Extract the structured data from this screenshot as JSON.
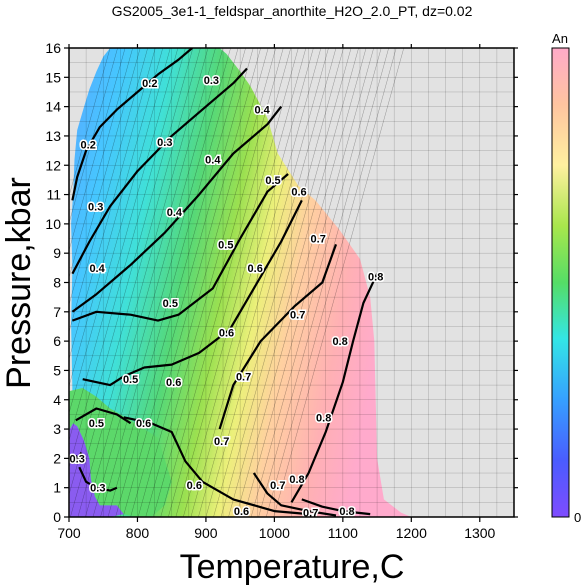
{
  "chart_data": {
    "type": "heatmap",
    "title": "GS2005_3e1-1_feldspar_anorthite_H2O_2.0_PT, dz=0.02",
    "xlabel": "Temperature,C",
    "ylabel": "Pressure,kbar",
    "xlim": [
      700,
      1350
    ],
    "ylim": [
      0,
      16
    ],
    "xticks": [
      "700",
      "800",
      "900",
      "1000",
      "1100",
      "1200",
      "1300"
    ],
    "yticks": [
      "0",
      "1",
      "2",
      "3",
      "4",
      "5",
      "6",
      "7",
      "8",
      "9",
      "10",
      "11",
      "12",
      "13",
      "14",
      "15",
      "16"
    ],
    "grid": true,
    "colorbar": {
      "label": "An",
      "min_label": "0",
      "position": "right"
    },
    "colors": {
      "no_data": "#e2e2e2",
      "low": "#8a5cf0",
      "high": "#ffb0c0"
    },
    "contour_interval": 0.02,
    "contours": [
      {
        "level": 0.2,
        "label": "0.2",
        "points": [
          [
            705,
            10.8
          ],
          [
            712,
            11.6
          ],
          [
            725,
            12.5
          ],
          [
            745,
            13.3
          ],
          [
            770,
            13.9
          ],
          [
            800,
            14.5
          ],
          [
            830,
            15.1
          ],
          [
            860,
            15.6
          ],
          [
            880,
            16.0
          ]
        ],
        "labels": [
          [
            728,
            12.7
          ],
          [
            818,
            14.8
          ]
        ]
      },
      {
        "level": 0.3,
        "label": "0.3",
        "points": [
          [
            705,
            8.3
          ],
          [
            730,
            9.4
          ],
          [
            760,
            10.6
          ],
          [
            800,
            11.8
          ],
          [
            850,
            13.0
          ],
          [
            900,
            14.0
          ],
          [
            940,
            14.8
          ],
          [
            960,
            15.3
          ]
        ],
        "labels": [
          [
            739,
            10.6
          ],
          [
            840,
            12.8
          ],
          [
            908,
            14.9
          ]
        ]
      },
      {
        "level": 0.4,
        "label": "0.4",
        "points": [
          [
            705,
            7.0
          ],
          [
            740,
            7.6
          ],
          [
            790,
            8.6
          ],
          [
            840,
            9.7
          ],
          [
            890,
            11.0
          ],
          [
            940,
            12.4
          ],
          [
            990,
            13.4
          ],
          [
            1010,
            14.0
          ]
        ],
        "labels": [
          [
            741,
            8.5
          ],
          [
            854,
            10.4
          ],
          [
            910,
            12.2
          ],
          [
            982,
            13.9
          ]
        ]
      },
      {
        "level": 0.5,
        "label": "0.5",
        "points": [
          [
            705,
            6.7
          ],
          [
            740,
            7.0
          ],
          [
            790,
            6.9
          ],
          [
            830,
            6.7
          ],
          [
            860,
            6.9
          ],
          [
            910,
            7.8
          ],
          [
            950,
            9.5
          ],
          [
            990,
            11.1
          ],
          [
            1020,
            11.7
          ]
        ],
        "labels": [
          [
            790,
            4.7
          ],
          [
            848,
            7.3
          ],
          [
            929,
            9.3
          ],
          [
            998,
            11.5
          ]
        ]
      },
      {
        "level": 0.6,
        "label": "0.6",
        "points": [
          [
            720,
            4.7
          ],
          [
            760,
            4.5
          ],
          [
            780,
            4.8
          ],
          [
            810,
            5.1
          ],
          [
            850,
            5.2
          ],
          [
            890,
            5.6
          ],
          [
            935,
            6.4
          ],
          [
            975,
            8.0
          ],
          [
            1010,
            9.4
          ],
          [
            1040,
            10.8
          ]
        ],
        "labels": [
          [
            853,
            4.6
          ],
          [
            930,
            6.3
          ],
          [
            972,
            8.5
          ],
          [
            1036,
            11.1
          ]
        ]
      },
      {
        "level": 0.7,
        "label": "0.7",
        "points": [
          [
            920,
            3.0
          ],
          [
            940,
            4.5
          ],
          [
            980,
            6.0
          ],
          [
            1030,
            7.2
          ],
          [
            1070,
            8.0
          ],
          [
            1090,
            9.3
          ]
        ],
        "labels": [
          [
            923,
            2.6
          ],
          [
            955,
            4.8
          ],
          [
            1034,
            6.9
          ],
          [
            1064,
            9.5
          ]
        ]
      },
      {
        "level": 0.8,
        "label": "0.8",
        "points": [
          [
            1025,
            0.5
          ],
          [
            1050,
            1.5
          ],
          [
            1075,
            2.9
          ],
          [
            1100,
            4.6
          ],
          [
            1115,
            6.0
          ],
          [
            1130,
            7.3
          ],
          [
            1150,
            8.3
          ]
        ],
        "labels": [
          [
            1033,
            1.3
          ],
          [
            1072,
            3.4
          ],
          [
            1096,
            6.0
          ],
          [
            1148,
            8.2
          ]
        ]
      },
      {
        "level": 0.6,
        "label": "0.6",
        "points": [
          [
            780,
            3.4
          ],
          [
            820,
            3.2
          ],
          [
            850,
            2.9
          ],
          [
            870,
            1.9
          ],
          [
            895,
            1.2
          ],
          [
            940,
            0.6
          ],
          [
            1000,
            0.2
          ],
          [
            1050,
            0.1
          ]
        ],
        "labels": [
          [
            809,
            3.2
          ],
          [
            883,
            1.1
          ],
          [
            952,
            0.2
          ]
        ]
      },
      {
        "level": 0.7,
        "label": "0.7",
        "points": [
          [
            970,
            1.5
          ],
          [
            990,
            0.8
          ],
          [
            1010,
            0.4
          ],
          [
            1050,
            0.2
          ],
          [
            1090,
            0.05
          ]
        ],
        "labels": [
          [
            1005,
            1.1
          ],
          [
            1053,
            0.15
          ]
        ]
      },
      {
        "level": 0.8,
        "label": "0.8",
        "points": [
          [
            1040,
            0.6
          ],
          [
            1070,
            0.35
          ],
          [
            1100,
            0.2
          ],
          [
            1140,
            0.1
          ]
        ],
        "labels": [
          [
            1106,
            0.2
          ]
        ]
      },
      {
        "level": 0.5,
        "label": "0.5",
        "points": [
          [
            710,
            3.3
          ],
          [
            740,
            3.7
          ],
          [
            770,
            3.5
          ],
          [
            790,
            3.2
          ]
        ],
        "labels": [
          [
            740,
            3.2
          ]
        ]
      },
      {
        "level": 0.3,
        "label": "0.3",
        "points": [
          [
            715,
            1.7
          ],
          [
            725,
            1.2
          ],
          [
            740,
            1.0
          ],
          [
            760,
            0.9
          ],
          [
            770,
            1.0
          ]
        ],
        "labels": [
          [
            742,
            1.0
          ]
        ]
      },
      {
        "level": 0.3,
        "label": "0.3",
        "points": [
          [
            710,
            2.1
          ],
          [
            713,
            1.9
          ],
          [
            718,
            2.2
          ]
        ],
        "labels": [
          [
            712,
            2.0
          ]
        ]
      }
    ],
    "notes": []
  }
}
